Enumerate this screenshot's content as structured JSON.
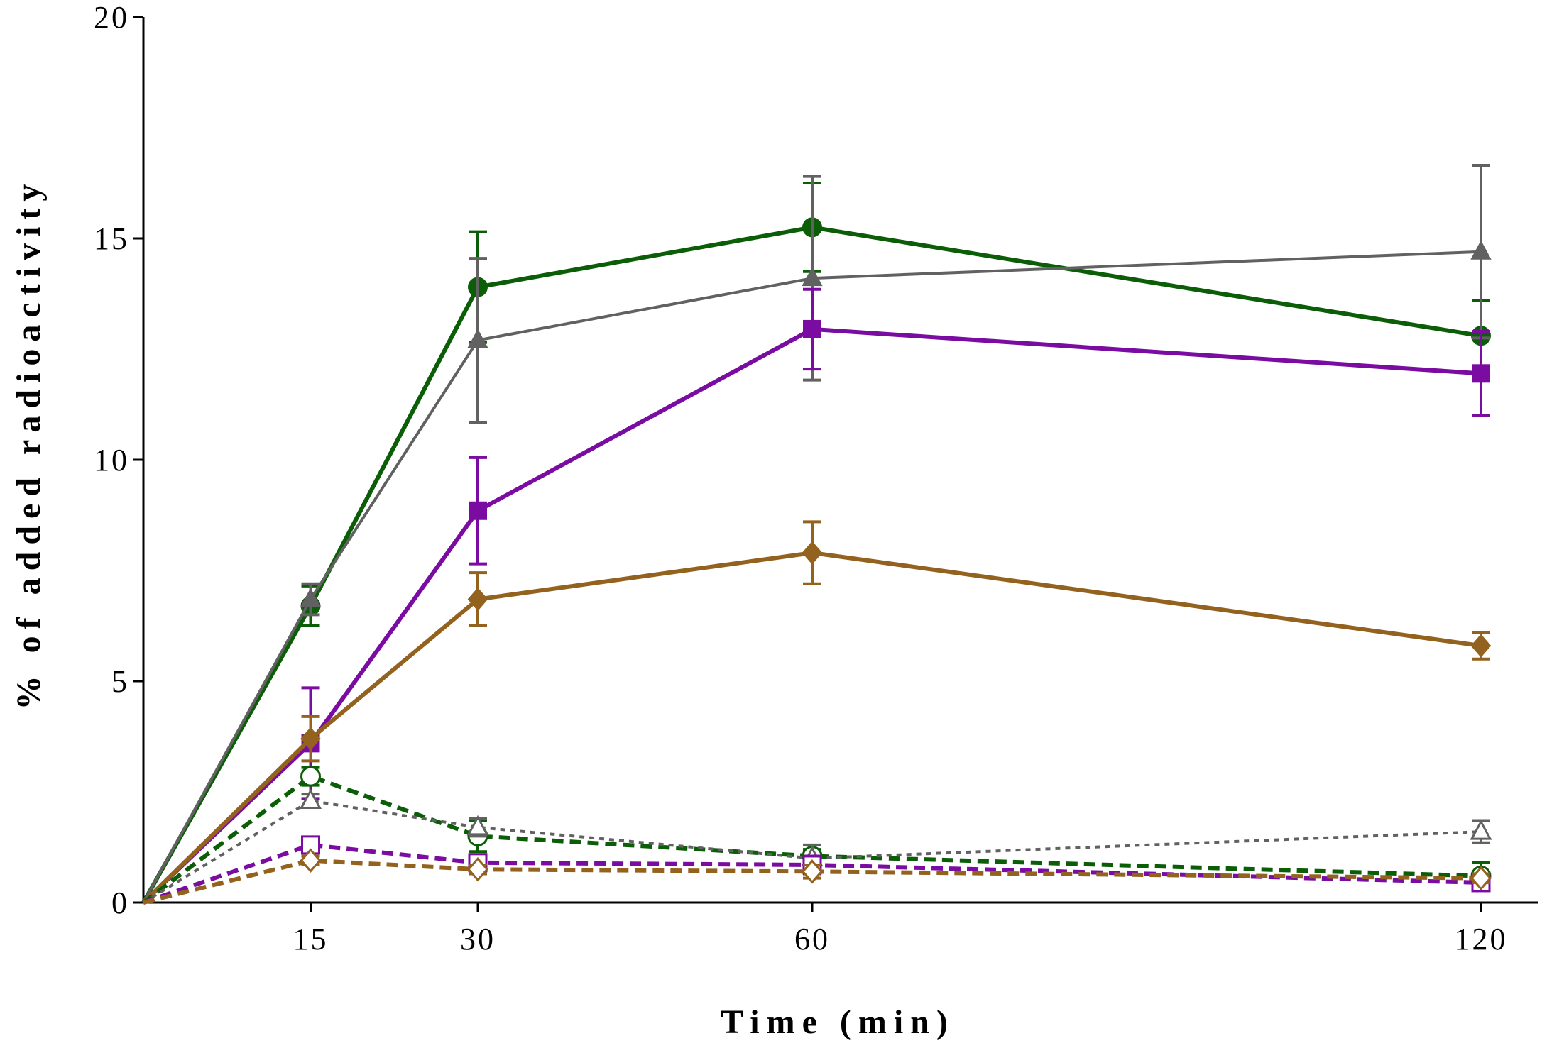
{
  "chart_data": {
    "type": "line",
    "title": "",
    "xlabel": "Time (min)",
    "ylabel": "% of added radioactivity",
    "xlim": [
      0,
      125
    ],
    "ylim": [
      0,
      20
    ],
    "x_ticks": [
      15,
      30,
      60,
      120
    ],
    "x_tick_labels": [
      "15",
      "30",
      "60",
      "120"
    ],
    "y_ticks": [
      0,
      5,
      10,
      15,
      20
    ],
    "y_tick_labels": [
      "0",
      "5",
      "10",
      "15",
      "20"
    ],
    "grid": false,
    "legend": "none",
    "series": [
      {
        "name": "green-solid-circle",
        "color": "#0b5e07",
        "marker": "circle",
        "filled": true,
        "dash": "solid",
        "width": 6,
        "x": [
          0,
          15,
          30,
          60,
          120
        ],
        "y": [
          0,
          6.7,
          13.9,
          15.25,
          12.8
        ],
        "err": [
          0,
          0.45,
          1.25,
          1.0,
          0.8
        ]
      },
      {
        "name": "gray-solid-triangle",
        "color": "#616161",
        "marker": "triangle",
        "filled": true,
        "dash": "solid",
        "width": 4,
        "x": [
          0,
          15,
          30,
          60,
          120
        ],
        "y": [
          0,
          6.85,
          12.7,
          14.1,
          14.7
        ],
        "err": [
          0,
          0.35,
          1.85,
          2.3,
          1.95
        ]
      },
      {
        "name": "purple-solid-square",
        "color": "#7a0ca1",
        "marker": "square",
        "filled": true,
        "dash": "solid",
        "width": 6,
        "x": [
          0,
          15,
          30,
          60,
          120
        ],
        "y": [
          0,
          3.6,
          8.85,
          12.95,
          11.95
        ],
        "err": [
          0,
          1.25,
          1.2,
          0.9,
          0.95
        ]
      },
      {
        "name": "brown-solid-diamond",
        "color": "#93621f",
        "marker": "diamond",
        "filled": true,
        "dash": "solid",
        "width": 6,
        "x": [
          0,
          15,
          30,
          60,
          120
        ],
        "y": [
          0,
          3.7,
          6.85,
          7.9,
          5.8
        ],
        "err": [
          0,
          0.5,
          0.6,
          0.7,
          0.3
        ]
      },
      {
        "name": "green-dashed-circle",
        "color": "#0b5e07",
        "marker": "circle",
        "filled": false,
        "dash": "long",
        "width": 6,
        "x": [
          0,
          15,
          30,
          60,
          120
        ],
        "y": [
          0,
          2.85,
          1.5,
          1.05,
          0.6
        ],
        "err": [
          0,
          0.2,
          0.35,
          0.15,
          0.3
        ]
      },
      {
        "name": "gray-dotted-triangle",
        "color": "#616161",
        "marker": "triangle",
        "filled": false,
        "dash": "short",
        "width": 4,
        "x": [
          0,
          15,
          30,
          60,
          120
        ],
        "y": [
          0,
          2.3,
          1.7,
          1.0,
          1.6
        ],
        "err": [
          0,
          0.15,
          0.2,
          0.3,
          0.25
        ]
      },
      {
        "name": "purple-dashed-square",
        "color": "#7a0ca1",
        "marker": "square",
        "filled": false,
        "dash": "long",
        "width": 6,
        "x": [
          0,
          15,
          30,
          60,
          120
        ],
        "y": [
          0,
          1.3,
          0.9,
          0.85,
          0.45
        ],
        "err": [
          0,
          0.1,
          0.15,
          0.2,
          0.15
        ]
      },
      {
        "name": "brown-dashed-diamond",
        "color": "#93621f",
        "marker": "diamond",
        "filled": false,
        "dash": "long",
        "width": 6,
        "x": [
          0,
          15,
          30,
          60,
          120
        ],
        "y": [
          0,
          0.95,
          0.75,
          0.7,
          0.55
        ],
        "err": [
          0,
          0.1,
          0.1,
          0.15,
          0.1
        ]
      }
    ]
  }
}
